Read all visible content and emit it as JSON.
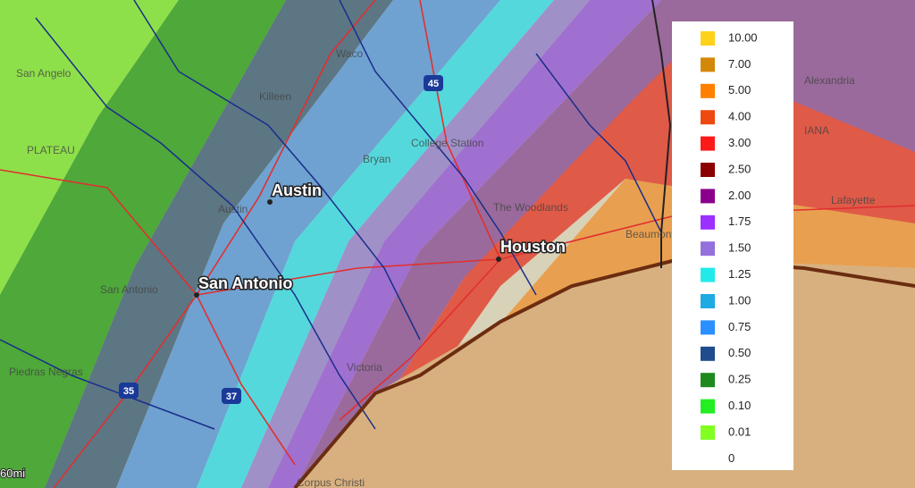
{
  "cities": [
    {
      "label": "Austin"
    },
    {
      "label": "San Antonio"
    },
    {
      "label": "Houston"
    }
  ],
  "map_labels": [
    "Waco",
    "Killeen",
    "College Station",
    "Bryan",
    "San Angelo",
    "Austin",
    "San Antonio",
    "Piedras Negras",
    "Victoria",
    "The Woodlands",
    "Beaumont",
    "Lafayette",
    "Alexandria",
    "Corpus Christi",
    "PLATEAU",
    "IANA"
  ],
  "highway_shields": [
    "45",
    "35",
    "37"
  ],
  "scale": "60mi",
  "legend": {
    "items": [
      {
        "label": "10.00",
        "color": "#ffd21a"
      },
      {
        "label": "7.00",
        "color": "#d4880a"
      },
      {
        "label": "5.00",
        "color": "#ff8000"
      },
      {
        "label": "4.00",
        "color": "#ee4a10"
      },
      {
        "label": "3.00",
        "color": "#ff1a1a"
      },
      {
        "label": "2.50",
        "color": "#8b0000"
      },
      {
        "label": "2.00",
        "color": "#8b008b"
      },
      {
        "label": "1.75",
        "color": "#9b30ff"
      },
      {
        "label": "1.50",
        "color": "#9370db"
      },
      {
        "label": "1.25",
        "color": "#22eaea"
      },
      {
        "label": "1.00",
        "color": "#1eaae2"
      },
      {
        "label": "0.75",
        "color": "#2a90ff"
      },
      {
        "label": "0.50",
        "color": "#1e4c8c"
      },
      {
        "label": "0.25",
        "color": "#1e8a1e"
      },
      {
        "label": "0.10",
        "color": "#22ee22"
      },
      {
        "label": "0.01",
        "color": "#80ff20"
      },
      {
        "label": "0",
        "color": null
      }
    ]
  }
}
